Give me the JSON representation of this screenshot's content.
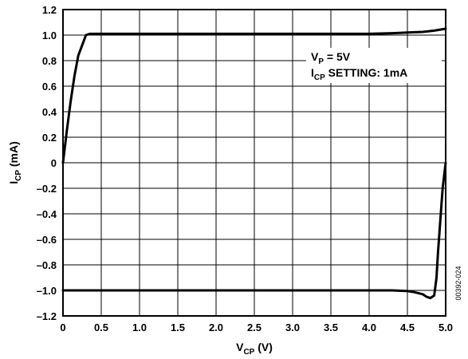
{
  "chart_data": {
    "type": "line",
    "xlabel": {
      "main": "V",
      "sub": "CP",
      "tail": " (V)"
    },
    "ylabel": {
      "main": "I",
      "sub": "CP",
      "tail": " (mA)"
    },
    "xlim": [
      0,
      5.0
    ],
    "ylim": [
      -1.2,
      1.2
    ],
    "grid": true,
    "x_ticks": [
      "0",
      "0.5",
      "1.0",
      "1.5",
      "2.0",
      "2.5",
      "3.0",
      "3.5",
      "4.0",
      "4.5",
      "5.0"
    ],
    "y_ticks": [
      "1.2",
      "1.0",
      "0.8",
      "0.6",
      "0.4",
      "0.2",
      "0",
      "–0.2",
      "–0.4",
      "–0.6",
      "–0.8",
      "–1.0",
      "–1.2"
    ],
    "series": [
      {
        "x": [
          0,
          0.05,
          0.1,
          0.15,
          0.2,
          0.25,
          0.3,
          0.35,
          0.5,
          1.0,
          2.0,
          3.0,
          4.0,
          4.3,
          4.5,
          4.7,
          4.85,
          5.0
        ],
        "y": [
          0.0,
          0.25,
          0.48,
          0.68,
          0.84,
          0.92,
          1.0,
          1.01,
          1.01,
          1.01,
          1.01,
          1.01,
          1.01,
          1.015,
          1.02,
          1.025,
          1.035,
          1.05
        ]
      },
      {
        "x": [
          0,
          1.0,
          2.0,
          3.0,
          4.0,
          4.3,
          4.5,
          4.6,
          4.7,
          4.75,
          4.8,
          4.85,
          4.88,
          4.9,
          4.93,
          4.96,
          5.0
        ],
        "y": [
          -1.0,
          -1.0,
          -1.0,
          -1.0,
          -1.0,
          -1.0,
          -1.005,
          -1.015,
          -1.03,
          -1.05,
          -1.06,
          -1.04,
          -0.9,
          -0.7,
          -0.45,
          -0.2,
          0.0
        ]
      }
    ],
    "annotations": [
      {
        "main": "V",
        "sub": "P",
        "tail": " = 5V"
      },
      {
        "main": "I",
        "sub": "CP",
        "tail": " SETTING: 1mA"
      }
    ],
    "figure_id": "00392-024"
  }
}
